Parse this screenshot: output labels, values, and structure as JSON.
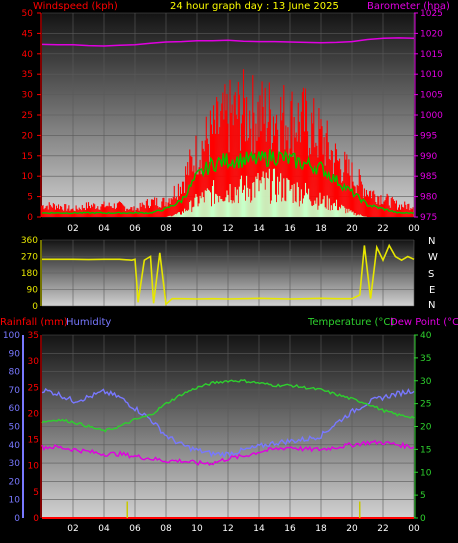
{
  "header": {
    "title": "24 hour graph day : 13 June 2025",
    "left_axis_title": "Windspeed (kph)",
    "right_axis_title": "Barometer (hpa)",
    "rain_title": "Rainfall (mm)",
    "humidity_title": "Humidity",
    "temp_title": "Temperature (°C)",
    "dew_title": "Dew Point (°C)"
  },
  "colors": {
    "wind_gust": "#ff0000",
    "wind_avg": "#00c800",
    "wind_low": "#c8ffc8",
    "barometer": "#e000e0",
    "direction": "#e6e600",
    "rain": "#ff0000",
    "humidity": "#7878ff",
    "temperature": "#2ed02e",
    "dew_point": "#e000e0",
    "rain_rate": "#c8c800",
    "title": "#ffff00",
    "left_title": "#ff0000",
    "right_title": "#e000e0"
  },
  "x_ticks": [
    "02",
    "04",
    "06",
    "08",
    "10",
    "12",
    "14",
    "16",
    "18",
    "20",
    "22",
    "00"
  ],
  "direction_letters": [
    "N",
    "W",
    "S",
    "E",
    "N"
  ],
  "chart_data": [
    {
      "type": "line",
      "id": "wind",
      "xlabel": "",
      "ylabel": "Windspeed (kph)",
      "y2label": "Barometer (hpa)",
      "ylim": [
        0,
        50
      ],
      "y2lim": [
        975,
        1025
      ],
      "yticks": [
        0,
        5,
        10,
        15,
        20,
        25,
        30,
        35,
        40,
        45,
        50
      ],
      "y2ticks": [
        975,
        980,
        985,
        990,
        995,
        1000,
        1005,
        1010,
        1015,
        1020,
        1025
      ],
      "x": [
        0,
        1,
        2,
        3,
        4,
        5,
        6,
        7,
        8,
        9,
        10,
        11,
        12,
        13,
        14,
        15,
        16,
        17,
        18,
        19,
        20,
        21,
        22,
        23,
        24
      ],
      "series": [
        {
          "name": "Wind gust",
          "axis": "left",
          "values": [
            3,
            3,
            2,
            3,
            3,
            3,
            2,
            4,
            4,
            9,
            17,
            22,
            26,
            28,
            27,
            27,
            26,
            25,
            21,
            15,
            11,
            7,
            5,
            3,
            3
          ]
        },
        {
          "name": "Wind speed",
          "axis": "left",
          "values": [
            1,
            1,
            1,
            1,
            1,
            1,
            1,
            1,
            2,
            4,
            10,
            13,
            14,
            14,
            14,
            15,
            14,
            13,
            12,
            9,
            6,
            3,
            2,
            1,
            1
          ]
        },
        {
          "name": "Wind lull",
          "axis": "left",
          "values": [
            0,
            0,
            0,
            0,
            0,
            0,
            0,
            0,
            0,
            1,
            4,
            6,
            7,
            7,
            8,
            8,
            7,
            6,
            4,
            3,
            1,
            0,
            0,
            0,
            0
          ]
        },
        {
          "name": "Barometer",
          "axis": "right",
          "values": [
            1017.3,
            1017.2,
            1017.2,
            1017.0,
            1016.9,
            1017.1,
            1017.2,
            1017.6,
            1017.9,
            1018.0,
            1018.2,
            1018.2,
            1018.3,
            1018.1,
            1018.0,
            1018.0,
            1017.9,
            1017.8,
            1017.7,
            1017.8,
            1018.0,
            1018.5,
            1018.8,
            1018.9,
            1018.8
          ]
        }
      ]
    },
    {
      "type": "line",
      "id": "direction",
      "xlabel": "",
      "ylabel": "",
      "ylim": [
        0,
        360
      ],
      "yticks": [
        0,
        90,
        180,
        270,
        360
      ],
      "x": [
        0,
        1,
        2,
        3,
        4,
        5,
        5.8,
        6.0,
        6.2,
        6.6,
        7.0,
        7.2,
        7.6,
        8.0,
        8.4,
        9,
        10,
        11,
        12,
        13,
        14,
        15,
        16,
        17,
        18,
        19,
        20,
        20.5,
        20.8,
        21.2,
        21.6,
        22.0,
        22.4,
        22.8,
        23.2,
        23.6,
        24
      ],
      "series": [
        {
          "name": "Wind direction",
          "values": [
            255,
            255,
            255,
            253,
            255,
            255,
            250,
            255,
            20,
            250,
            270,
            15,
            290,
            10,
            40,
            40,
            38,
            40,
            38,
            40,
            42,
            40,
            38,
            40,
            42,
            40,
            40,
            60,
            330,
            40,
            320,
            250,
            330,
            270,
            250,
            270,
            255
          ]
        }
      ]
    },
    {
      "type": "line",
      "id": "temp_hum",
      "xlabel": "",
      "ylabel": "Rainfall (mm)",
      "ylabel2": "Humidity",
      "y2label": "Temperature (°C)",
      "ylim_humidity": [
        0,
        100
      ],
      "ylim_rain": [
        0,
        35
      ],
      "y2lim": [
        0,
        40
      ],
      "yticks_humidity": [
        0,
        10,
        20,
        30,
        40,
        50,
        60,
        70,
        80,
        90,
        100
      ],
      "yticks_rain": [
        0,
        5,
        10,
        15,
        20,
        25,
        30,
        35
      ],
      "y2ticks": [
        0,
        5,
        10,
        15,
        20,
        25,
        30,
        35,
        40
      ],
      "x": [
        0,
        1,
        2,
        3,
        4,
        5,
        6,
        7,
        8,
        9,
        10,
        11,
        12,
        13,
        14,
        15,
        16,
        17,
        18,
        19,
        20,
        21,
        22,
        23,
        24
      ],
      "series": [
        {
          "name": "Temperature",
          "axis": "right",
          "values": [
            21,
            21.5,
            21,
            20,
            19,
            20,
            21.5,
            22.5,
            25,
            27,
            28.5,
            29.5,
            30,
            30,
            29.5,
            29,
            29,
            28.5,
            28,
            27,
            26,
            25,
            23.5,
            22.5,
            22
          ]
        },
        {
          "name": "Dew Point",
          "axis": "right",
          "values": [
            15.5,
            15.5,
            15,
            14.5,
            14,
            14,
            13.5,
            13,
            12.5,
            12.5,
            12,
            12,
            13,
            13.5,
            14.5,
            15,
            15.5,
            15,
            15,
            15.5,
            16,
            16.5,
            16.5,
            16,
            15.5
          ]
        },
        {
          "name": "Humidity",
          "axis": "humidity",
          "values": [
            70,
            68,
            64,
            66,
            69,
            66,
            60,
            54,
            45,
            40,
            37,
            35,
            35,
            37,
            39,
            41,
            42,
            43,
            45,
            52,
            58,
            63,
            66,
            68,
            70
          ]
        },
        {
          "name": "Rainfall",
          "axis": "rain",
          "values": [
            0,
            0,
            0,
            0,
            0,
            0,
            0,
            0,
            0,
            0,
            0,
            0,
            0,
            0,
            0,
            0,
            0,
            0,
            0,
            0,
            0,
            0,
            0,
            0,
            0
          ]
        },
        {
          "name": "Rain rate ticks",
          "axis": "humidity",
          "x": [
            5.5,
            20.5
          ],
          "values": [
            9,
            9
          ]
        }
      ]
    }
  ]
}
